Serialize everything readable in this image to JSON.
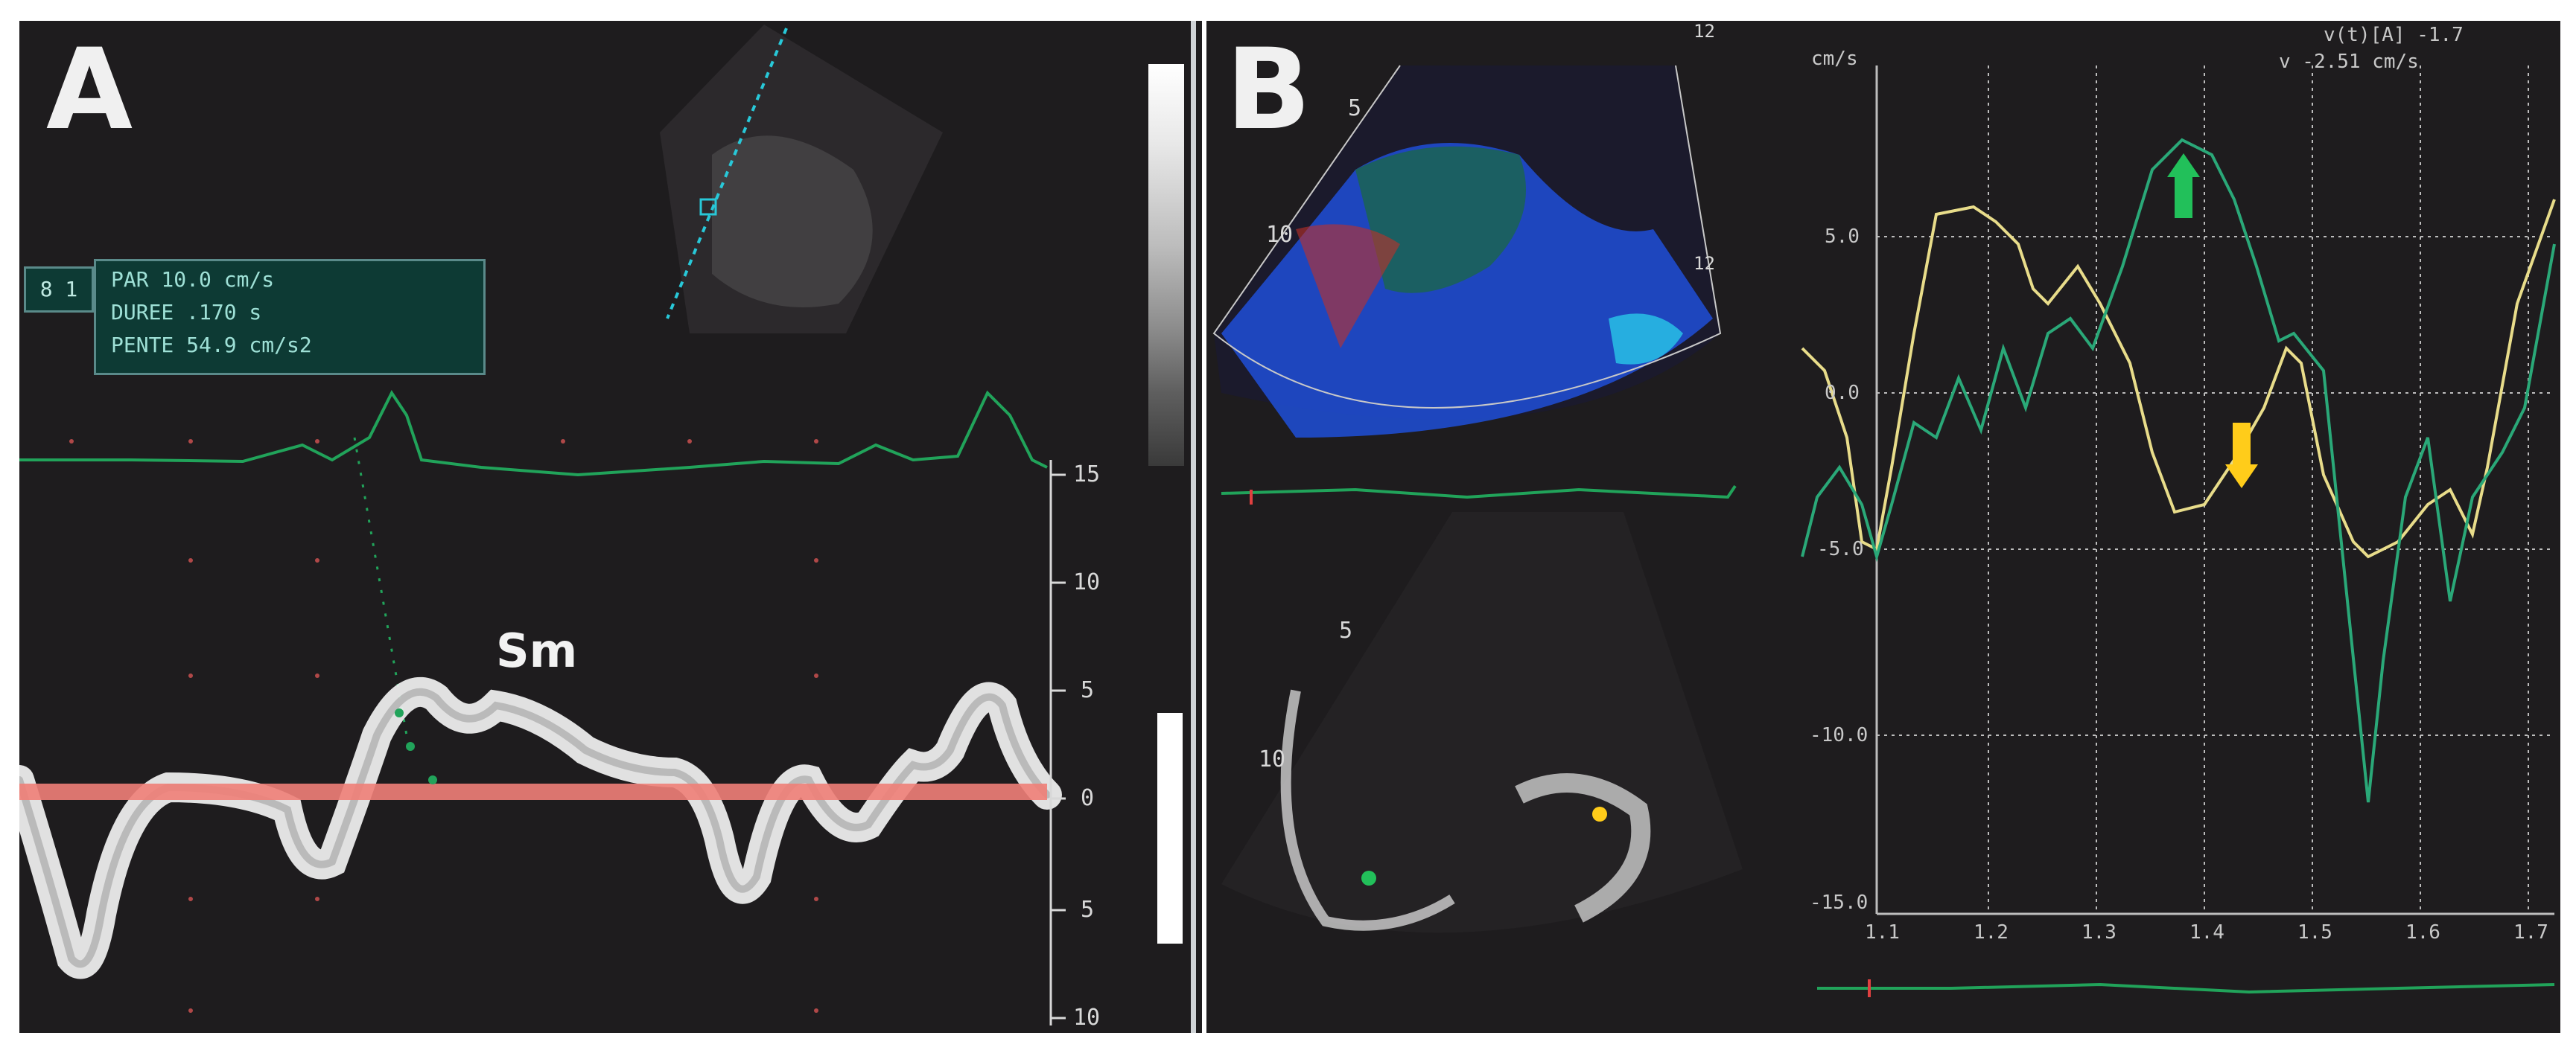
{
  "panel_a": {
    "letter": "A",
    "measurement": {
      "tag": "8 1",
      "lines": [
        "PAR  10.0 cm/s",
        "DUREE .170 s",
        "PENTE 54.9 cm/s2"
      ]
    },
    "wave_label": "Sm",
    "scale_ticks": [
      "15",
      "10",
      "5",
      "0",
      "5",
      "10"
    ],
    "gray_ramp_label": "",
    "colors": {
      "ecg": "#21a35a",
      "baseline": "#f08078",
      "tissue": "#f2f2f2"
    }
  },
  "panel_b": {
    "letter": "B",
    "depth_marks_top": [
      "5",
      "10"
    ],
    "depth_marks_bottom": [
      "5",
      "10"
    ],
    "color_bar_top": "12",
    "color_bar_bottom": "12",
    "graph": {
      "unit": "cm/s",
      "header_line1": "v(t)[A] -1.7",
      "header_line2": "v -2.51 cm/s",
      "y_ticks": [
        "5.0",
        "0.0",
        "-5.0",
        "-10.0",
        "-15.0"
      ],
      "x_ticks": [
        "1.1",
        "1.2",
        "1.3",
        "1.4",
        "1.5",
        "1.6",
        "1.7"
      ],
      "series_colors": {
        "green": "#2aa878",
        "yellow": "#e8dc8a"
      },
      "arrow_colors": {
        "green": "#22c05a",
        "yellow": "#ffcc1a"
      }
    }
  }
}
